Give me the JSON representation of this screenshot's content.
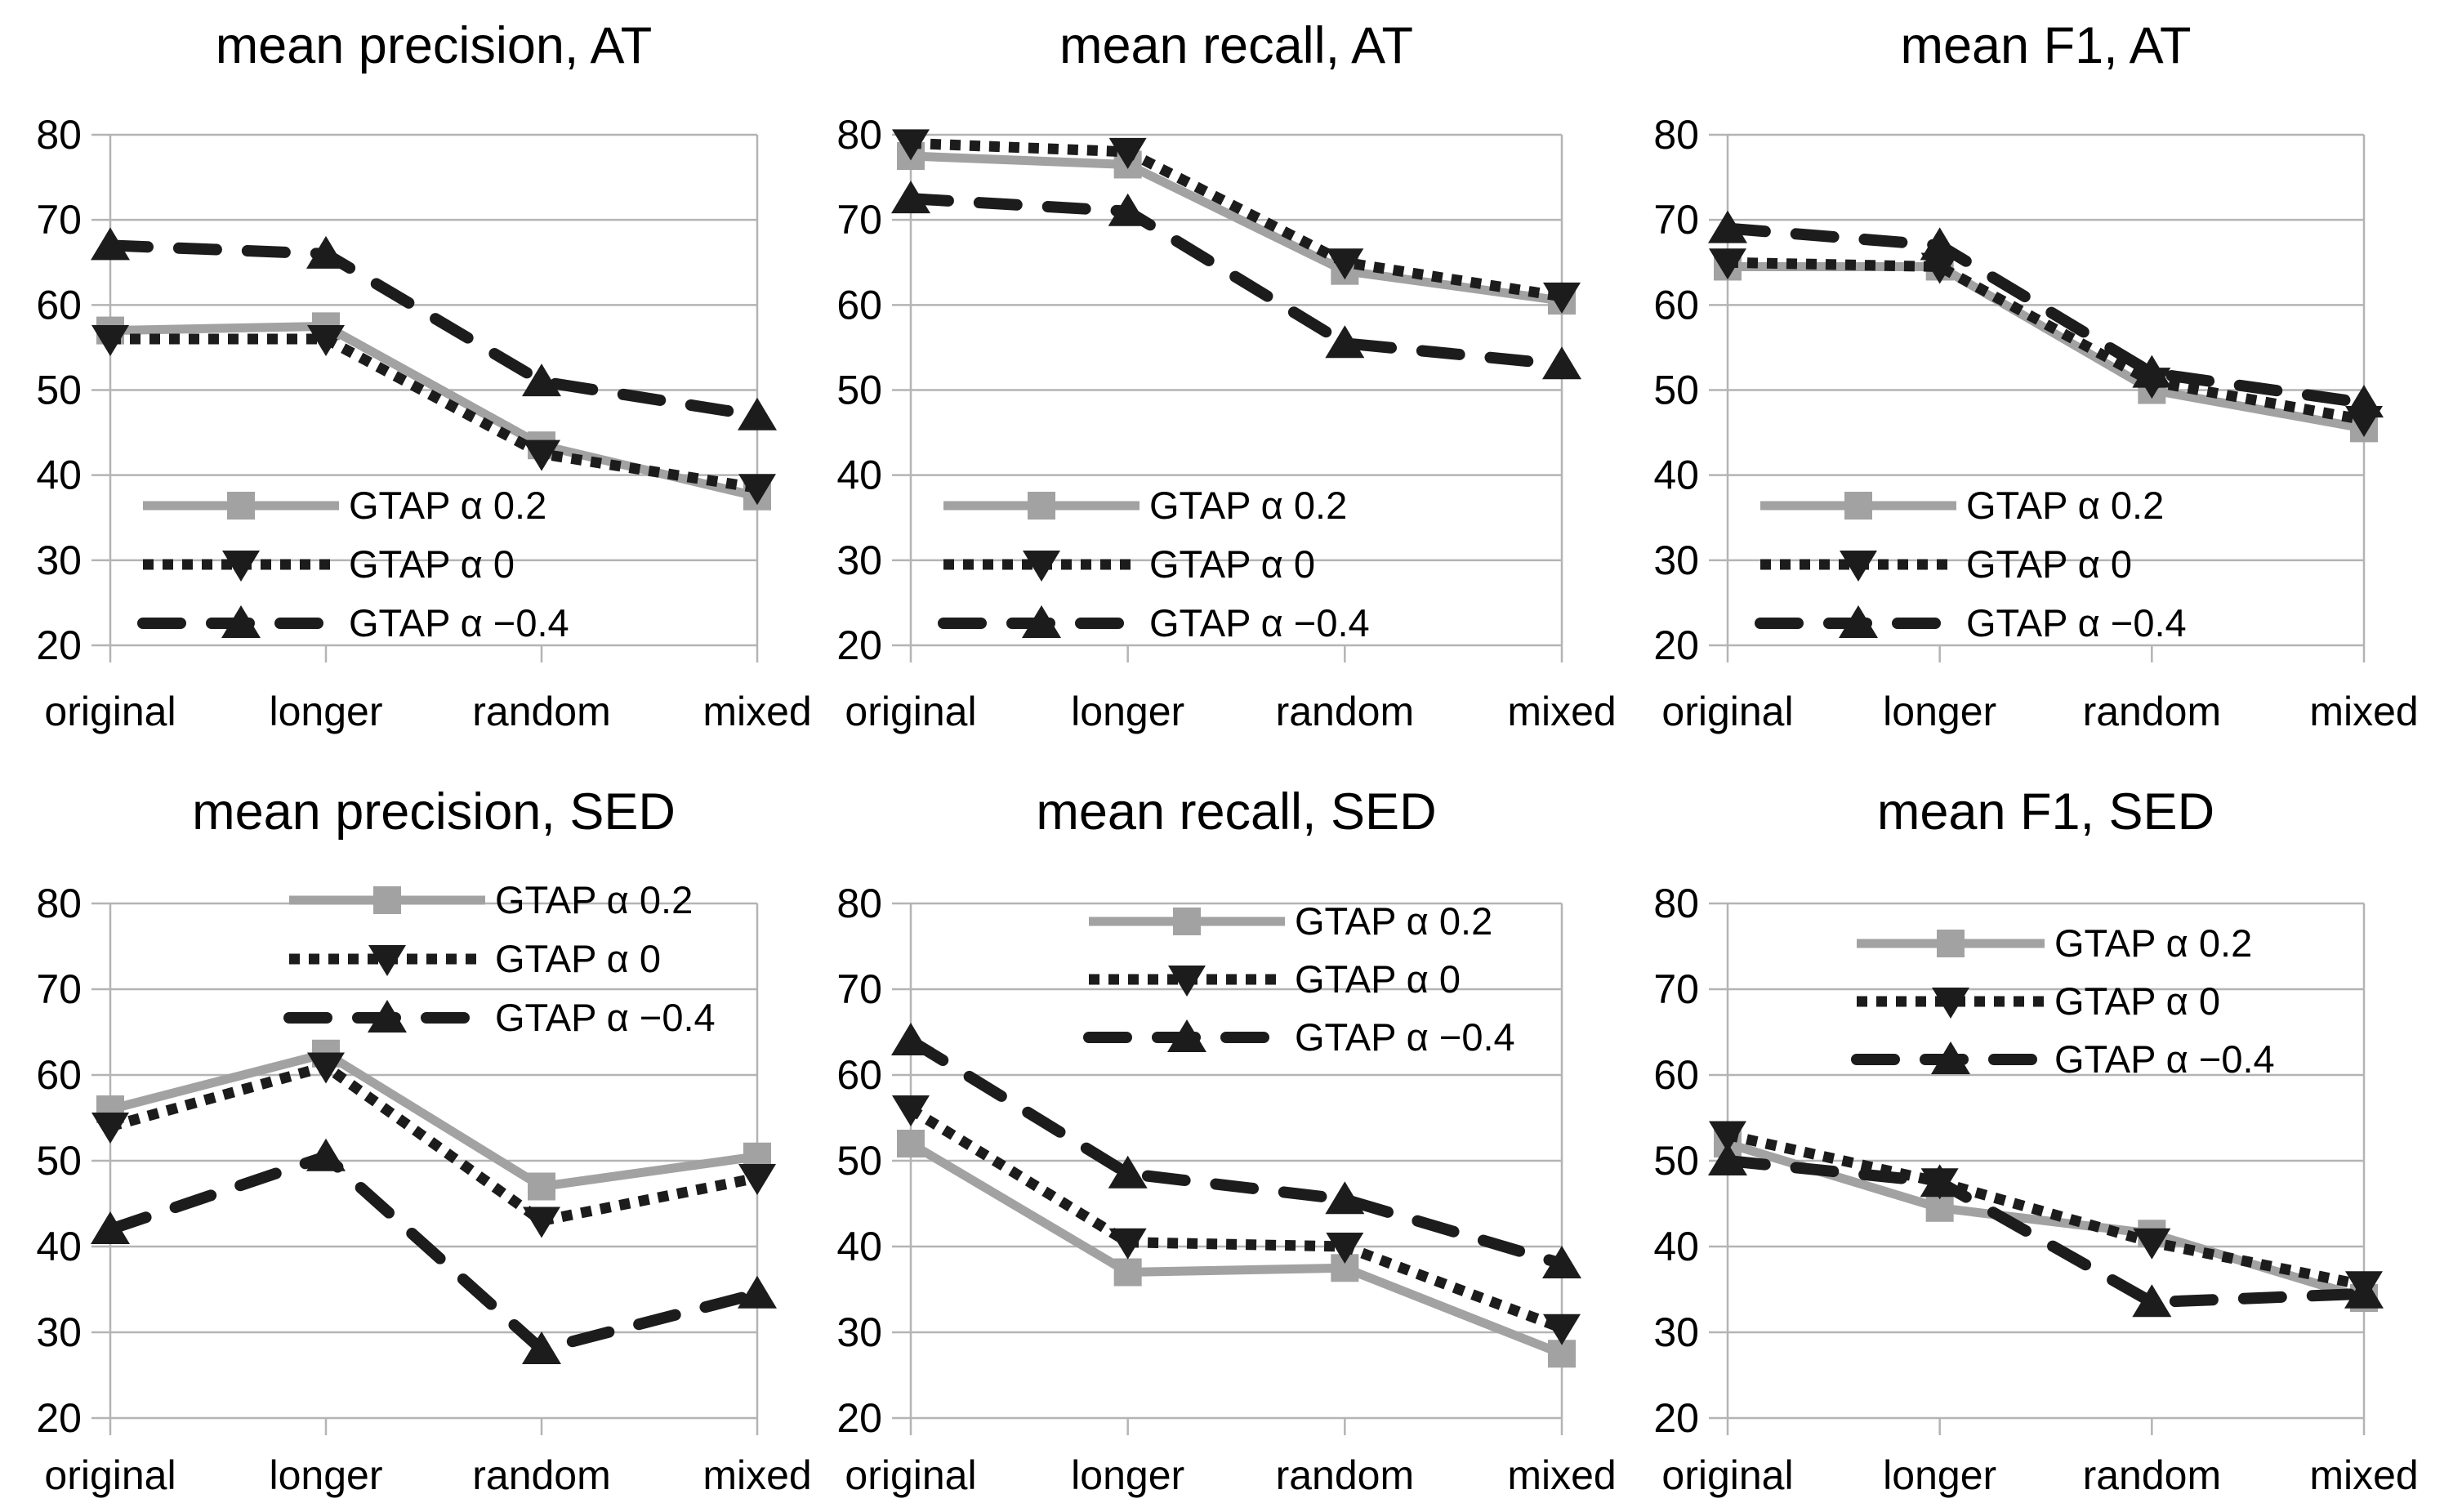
{
  "figure": {
    "background": "#ffffff",
    "rows": 2,
    "cols": 3
  },
  "colors": {
    "gray_series": "#a2a2a2",
    "black_series": "#1c1c1c",
    "gridline": "#b4b4b4",
    "axis": "#b4b4b4",
    "text": "#000000"
  },
  "legend": {
    "items": [
      {
        "label": "GTAP α 0.2",
        "style": "gray-solid-square"
      },
      {
        "label": "GTAP α 0",
        "style": "black-dotted-triangle-down"
      },
      {
        "label": "GTAP α −0.4",
        "style": "black-dashed-triangle-up"
      }
    ]
  },
  "chart_data": [
    {
      "type": "line",
      "title": "mean precision, AT",
      "categories": [
        "original",
        "longer",
        "random",
        "mixed"
      ],
      "yticks": [
        80,
        70,
        60,
        50,
        40,
        30,
        20
      ],
      "ylim": [
        20,
        80
      ],
      "grid": true,
      "legend_position": "bottom-left",
      "series": [
        {
          "name": "GTAP α 0.2",
          "style": "gray-solid-square",
          "values": [
            57,
            57.5,
            43.5,
            37.5
          ]
        },
        {
          "name": "GTAP α 0",
          "style": "black-dotted-triangle-down",
          "values": [
            56,
            56,
            42.5,
            38.5
          ]
        },
        {
          "name": "GTAP α −0.4",
          "style": "black-dashed-triangle-up",
          "values": [
            67,
            66,
            51,
            47
          ]
        }
      ]
    },
    {
      "type": "line",
      "title": "mean recall, AT",
      "categories": [
        "original",
        "longer",
        "random",
        "mixed"
      ],
      "yticks": [
        80,
        70,
        60,
        50,
        40,
        30,
        20
      ],
      "ylim": [
        20,
        80
      ],
      "grid": true,
      "legend_position": "bottom-left",
      "series": [
        {
          "name": "GTAP α 0.2",
          "style": "gray-solid-square",
          "values": [
            77.5,
            76.5,
            64,
            60.5
          ]
        },
        {
          "name": "GTAP α 0",
          "style": "black-dotted-triangle-down",
          "values": [
            79,
            78,
            65,
            61
          ]
        },
        {
          "name": "GTAP α −0.4",
          "style": "black-dashed-triangle-up",
          "values": [
            72.5,
            71,
            55.5,
            53
          ]
        }
      ]
    },
    {
      "type": "line",
      "title": "mean F1, AT",
      "categories": [
        "original",
        "longer",
        "random",
        "mixed"
      ],
      "yticks": [
        80,
        70,
        60,
        50,
        40,
        30,
        20
      ],
      "ylim": [
        20,
        80
      ],
      "grid": true,
      "legend_position": "bottom-left",
      "series": [
        {
          "name": "GTAP α 0.2",
          "style": "gray-solid-square",
          "values": [
            64.5,
            64.5,
            50,
            45.5
          ]
        },
        {
          "name": "GTAP α 0",
          "style": "black-dotted-triangle-down",
          "values": [
            65,
            64.5,
            51,
            46.5
          ]
        },
        {
          "name": "GTAP α −0.4",
          "style": "black-dashed-triangle-up",
          "values": [
            69,
            67,
            52,
            48.5
          ]
        }
      ]
    },
    {
      "type": "line",
      "title": "mean precision, SED",
      "categories": [
        "original",
        "longer",
        "random",
        "mixed"
      ],
      "yticks": [
        80,
        70,
        60,
        50,
        40,
        30,
        20
      ],
      "ylim": [
        20,
        80
      ],
      "grid": true,
      "legend_position": "top-right",
      "series": [
        {
          "name": "GTAP α 0.2",
          "style": "gray-solid-square",
          "values": [
            56,
            62.5,
            47,
            50.5
          ]
        },
        {
          "name": "GTAP α 0",
          "style": "black-dotted-triangle-down",
          "values": [
            54,
            61,
            43,
            48
          ]
        },
        {
          "name": "GTAP α −0.4",
          "style": "black-dashed-triangle-up",
          "values": [
            42,
            50.5,
            28,
            34.5
          ]
        }
      ]
    },
    {
      "type": "line",
      "title": "mean recall, SED",
      "categories": [
        "original",
        "longer",
        "random",
        "mixed"
      ],
      "yticks": [
        80,
        70,
        60,
        50,
        40,
        30,
        20
      ],
      "ylim": [
        20,
        80
      ],
      "grid": true,
      "legend_position": "top-right",
      "series": [
        {
          "name": "GTAP α 0.2",
          "style": "gray-solid-square",
          "values": [
            52,
            37,
            37.5,
            27.5
          ]
        },
        {
          "name": "GTAP α 0",
          "style": "black-dotted-triangle-down",
          "values": [
            56,
            40.5,
            40,
            30.5
          ]
        },
        {
          "name": "GTAP α −0.4",
          "style": "black-dashed-triangle-up",
          "values": [
            64,
            48.5,
            45.5,
            38
          ]
        }
      ]
    },
    {
      "type": "line",
      "title": "mean F1, SED",
      "categories": [
        "original",
        "longer",
        "random",
        "mixed"
      ],
      "yticks": [
        80,
        70,
        60,
        50,
        40,
        30,
        20
      ],
      "ylim": [
        20,
        80
      ],
      "grid": true,
      "legend_position": "top-right",
      "series": [
        {
          "name": "GTAP α 0.2",
          "style": "gray-solid-square",
          "values": [
            52,
            44.5,
            41.5,
            34
          ]
        },
        {
          "name": "GTAP α 0",
          "style": "black-dotted-triangle-down",
          "values": [
            53,
            47.5,
            40.5,
            35.5
          ]
        },
        {
          "name": "GTAP α −0.4",
          "style": "black-dashed-triangle-up",
          "values": [
            50,
            47.5,
            33.5,
            34.5
          ]
        }
      ]
    }
  ]
}
